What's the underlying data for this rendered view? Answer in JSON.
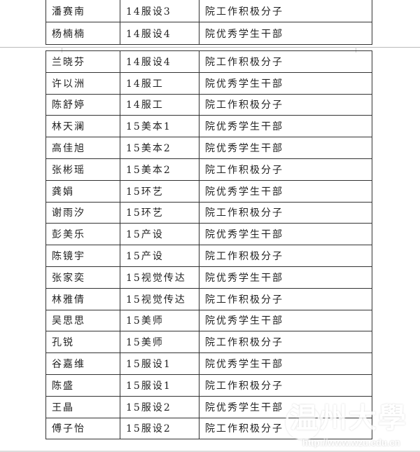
{
  "table_top": [
    [
      "潘赛南",
      "14服设3",
      "院工作积极分子"
    ],
    [
      "杨楠楠",
      "14服设4",
      "院优秀学生干部"
    ]
  ],
  "table_main": [
    [
      "兰晓芬",
      "14服设4",
      "院工作积极分子"
    ],
    [
      "许以洲",
      "14服工",
      "院优秀学生干部"
    ],
    [
      "陈舒婷",
      "14服工",
      "院工作积极分子"
    ],
    [
      "林天澜",
      "15美本1",
      "院优秀学生干部"
    ],
    [
      "高佳旭",
      "15美本2",
      "院优秀学生干部"
    ],
    [
      "张彬瑶",
      "15美本2",
      "院工作积极分子"
    ],
    [
      "龚娟",
      "15环艺",
      "院优秀学生干部"
    ],
    [
      "谢雨汐",
      "15环艺",
      "院工作积极分子"
    ],
    [
      "彭美乐",
      "15产设",
      "院优秀学生干部"
    ],
    [
      "陈镜宇",
      "15产设",
      "院工作积极分子"
    ],
    [
      "张家奕",
      "15视觉传达",
      "院优秀学生干部"
    ],
    [
      "林雅倩",
      "15视觉传达",
      "院工作积极分子"
    ],
    [
      "吴思思",
      "15美师",
      "院优秀学生干部"
    ],
    [
      "孔锐",
      "15美师",
      "院工作积极分子"
    ],
    [
      "谷嘉维",
      "15服设1",
      "院优秀学生干部"
    ],
    [
      "陈盛",
      "15服设1",
      "院工作积极分子"
    ],
    [
      "王晶",
      "15服设2",
      "院优秀学生干部"
    ],
    [
      "傅子怡",
      "15服设2",
      "院工作积极分子"
    ]
  ],
  "watermark": {
    "text": "温州大學",
    "url": "http://www.wzu.edu.cn"
  }
}
